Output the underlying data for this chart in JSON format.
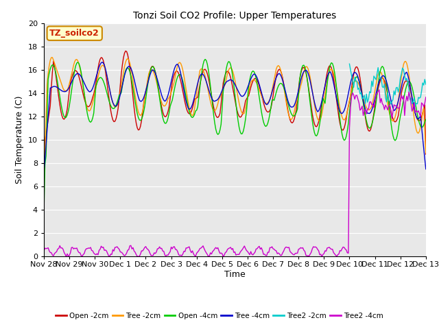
{
  "title": "Tonzi Soil CO2 Profile: Upper Temperatures",
  "ylabel": "Soil Temperature (C)",
  "xlabel": "Time",
  "watermark": "TZ_soilco2",
  "bg_color": "#e8e8e8",
  "ylim": [
    0,
    20
  ],
  "legend_labels": [
    "Open -2cm",
    "Tree -2cm",
    "Open -4cm",
    "Tree -4cm",
    "Tree2 -2cm",
    "Tree2 -4cm"
  ],
  "legend_colors": [
    "#cc0000",
    "#ff9900",
    "#00cc00",
    "#0000cc",
    "#00cccc",
    "#cc00cc"
  ],
  "xtick_labels": [
    "Nov 28",
    "Nov 29",
    "Nov 30",
    "Dec 1",
    "Dec 2",
    "Dec 3",
    "Dec 4",
    "Dec 5",
    "Dec 6",
    "Dec 7",
    "Dec 8",
    "Dec 9",
    "Dec 10",
    "Dec 11",
    "Dec 12",
    "Dec 13"
  ],
  "n_points": 361,
  "days": 15
}
